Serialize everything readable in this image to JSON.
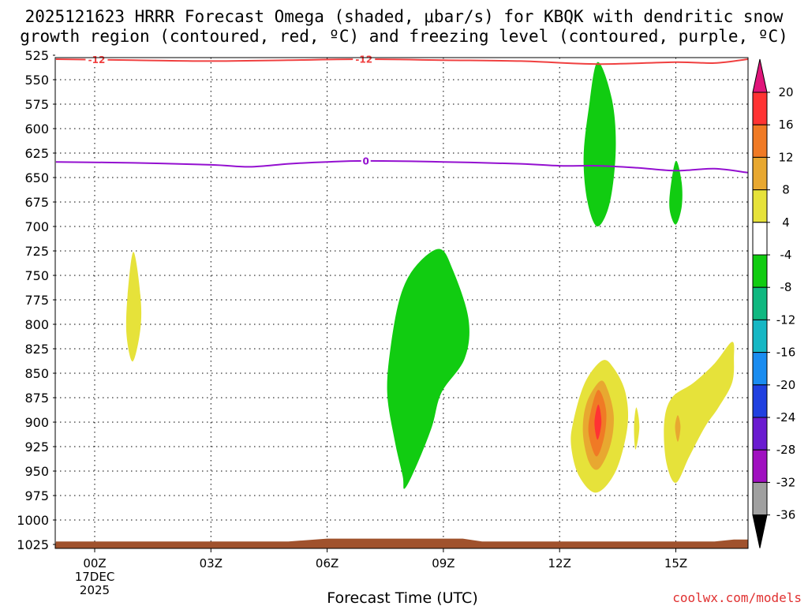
{
  "chart_data": {
    "type": "heatmap",
    "title_lines": [
      "2025121623 HRRR Forecast Omega (shaded, μbar/s) for KBQK with dendritic snow",
      "growth region (contoured, red, ºC) and freezing level (contoured, purple, ºC)"
    ],
    "xlabel": "Forecast Time (UTC)",
    "ylabel": "",
    "credit": "coolwx.com/models",
    "x_range_hours": [
      -1,
      17
    ],
    "y_range_hpa": [
      525,
      1025
    ],
    "grid": true,
    "x_ticks": [
      {
        "hour": 0,
        "label": "00Z",
        "sub": [
          "17DEC",
          "2025"
        ]
      },
      {
        "hour": 3,
        "label": "03Z"
      },
      {
        "hour": 6,
        "label": "06Z"
      },
      {
        "hour": 9,
        "label": "09Z"
      },
      {
        "hour": 12,
        "label": "12Z"
      },
      {
        "hour": 15,
        "label": "15Z"
      }
    ],
    "y_ticks": [
      525,
      550,
      575,
      600,
      625,
      650,
      675,
      700,
      725,
      750,
      775,
      800,
      825,
      850,
      875,
      900,
      925,
      950,
      975,
      1000,
      1025
    ],
    "colorbar": {
      "labels": [
        "20",
        "16",
        "12",
        "8",
        "4",
        "-4",
        "-8",
        "-12",
        "-16",
        "-20",
        "-24",
        "-28",
        "-32",
        "-36"
      ],
      "bands": [
        {
          "range": [
            16,
            20
          ],
          "color": "#ff3333"
        },
        {
          "range": [
            12,
            16
          ],
          "color": "#f07a25"
        },
        {
          "range": [
            8,
            12
          ],
          "color": "#e8a830"
        },
        {
          "range": [
            4,
            8
          ],
          "color": "#e6e23a"
        },
        {
          "range": [
            -4,
            4
          ],
          "color": "#ffffff"
        },
        {
          "range": [
            -8,
            -4
          ],
          "color": "#11cc11"
        },
        {
          "range": [
            -12,
            -8
          ],
          "color": "#10b880"
        },
        {
          "range": [
            -16,
            -12
          ],
          "color": "#16b7c4"
        },
        {
          "range": [
            -20,
            -16
          ],
          "color": "#1a8cf0"
        },
        {
          "range": [
            -24,
            -20
          ],
          "color": "#2040e0"
        },
        {
          "range": [
            -28,
            -24
          ],
          "color": "#6a1bd0"
        },
        {
          "range": [
            -32,
            -28
          ],
          "color": "#a010c0"
        },
        {
          "range": [
            -36,
            -32
          ],
          "color": "#a0a0a0"
        }
      ],
      "top_arrow_color": "#e0157a",
      "bottom_arrow_color": "#000000"
    },
    "contours": [
      {
        "name": "dendritic -12C",
        "color": "#f04040",
        "label": "-12",
        "label_hours": [
          0.05,
          6.95
        ],
        "points": [
          [
            -1,
            529
          ],
          [
            1,
            530
          ],
          [
            3,
            531
          ],
          [
            5,
            530
          ],
          [
            7,
            529
          ],
          [
            9,
            530
          ],
          [
            11,
            531
          ],
          [
            13,
            534
          ],
          [
            15,
            532
          ],
          [
            16,
            533
          ],
          [
            17,
            529
          ]
        ]
      },
      {
        "name": "freezing level 0C",
        "color": "#9410d0",
        "label": "0",
        "label_hours": [
          7.0
        ],
        "points": [
          [
            -1,
            634
          ],
          [
            1,
            635
          ],
          [
            3,
            637
          ],
          [
            4,
            639
          ],
          [
            5,
            636
          ],
          [
            6,
            634
          ],
          [
            7,
            633
          ],
          [
            9,
            634
          ],
          [
            11,
            636
          ],
          [
            12,
            638
          ],
          [
            13,
            638
          ],
          [
            14,
            640
          ],
          [
            15,
            643
          ],
          [
            16,
            641
          ],
          [
            17,
            645
          ]
        ]
      }
    ],
    "omega_features": [
      {
        "name": "green-cell-1",
        "level": "-8 to -4",
        "center_hour": 8.6,
        "pressure_range": [
          723,
          970
        ],
        "color": "#11cc11",
        "shape": [
          [
            8.9,
            723
          ],
          [
            8.3,
            740
          ],
          [
            7.9,
            770
          ],
          [
            7.65,
            820
          ],
          [
            7.55,
            870
          ],
          [
            7.75,
            920
          ],
          [
            7.95,
            955
          ],
          [
            8.0,
            968
          ],
          [
            8.3,
            945
          ],
          [
            8.7,
            905
          ],
          [
            8.95,
            870
          ],
          [
            9.55,
            835
          ],
          [
            9.65,
            795
          ],
          [
            9.25,
            745
          ]
        ]
      },
      {
        "name": "green-cell-2",
        "level": "-8 to -4",
        "center_hour": 13.0,
        "pressure_range": [
          532,
          700
        ],
        "color": "#11cc11",
        "shape": [
          [
            12.98,
            532
          ],
          [
            12.75,
            580
          ],
          [
            12.62,
            630
          ],
          [
            12.72,
            675
          ],
          [
            12.98,
            700
          ],
          [
            13.3,
            675
          ],
          [
            13.45,
            620
          ],
          [
            13.35,
            570
          ]
        ]
      },
      {
        "name": "green-cell-3",
        "level": "-8 to -4",
        "center_hour": 15.0,
        "pressure_range": [
          633,
          698
        ],
        "color": "#11cc11",
        "shape": [
          [
            15.0,
            633
          ],
          [
            14.85,
            665
          ],
          [
            14.85,
            685
          ],
          [
            15.0,
            698
          ],
          [
            15.15,
            680
          ],
          [
            15.15,
            655
          ]
        ]
      },
      {
        "name": "yellow-cell-1",
        "level": "4 to 8",
        "center_hour": 1.0,
        "pressure_range": [
          726,
          838
        ],
        "color": "#e6e23a",
        "shape": [
          [
            1.0,
            726
          ],
          [
            0.85,
            770
          ],
          [
            0.82,
            810
          ],
          [
            0.98,
            838
          ],
          [
            1.18,
            805
          ],
          [
            1.18,
            770
          ]
        ]
      },
      {
        "name": "yellow-cell-2",
        "level": "4 to 8 (core up to 20)",
        "center_hour": 13.0,
        "pressure_range": [
          837,
          972
        ],
        "color": "#e6e23a",
        "shape": [
          [
            13.1,
            837
          ],
          [
            12.65,
            860
          ],
          [
            12.35,
            900
          ],
          [
            12.3,
            925
          ],
          [
            12.5,
            955
          ],
          [
            12.95,
            972
          ],
          [
            13.45,
            950
          ],
          [
            13.75,
            905
          ],
          [
            13.7,
            870
          ],
          [
            13.4,
            845
          ]
        ]
      },
      {
        "name": "orange-core-2",
        "level": "8 to 12",
        "center_hour": 13.0,
        "pressure_range": [
          858,
          948
        ],
        "color": "#e8a830",
        "shape": [
          [
            13.05,
            858
          ],
          [
            12.7,
            880
          ],
          [
            12.6,
            910
          ],
          [
            12.75,
            940
          ],
          [
            13.0,
            948
          ],
          [
            13.3,
            925
          ],
          [
            13.4,
            895
          ],
          [
            13.25,
            868
          ]
        ]
      },
      {
        "name": "deep-orange-core-2",
        "level": "12 to 16",
        "center_hour": 13.0,
        "pressure_range": [
          867,
          935
        ],
        "color": "#f07a25",
        "shape": [
          [
            13.0,
            867
          ],
          [
            12.8,
            890
          ],
          [
            12.75,
            912
          ],
          [
            12.95,
            935
          ],
          [
            13.15,
            915
          ],
          [
            13.2,
            888
          ]
        ]
      },
      {
        "name": "red-core-2",
        "level": "16 to 20",
        "center_hour": 13.0,
        "pressure_range": [
          882,
          918
        ],
        "color": "#ff3333",
        "shape": [
          [
            13.0,
            882
          ],
          [
            12.9,
            900
          ],
          [
            12.98,
            918
          ],
          [
            13.08,
            900
          ]
        ]
      },
      {
        "name": "yellow-cell-3",
        "level": "4 to 8",
        "center_hour": 14.0,
        "pressure_range": [
          885,
          928
        ],
        "color": "#e6e23a",
        "shape": [
          [
            13.98,
            885
          ],
          [
            13.92,
            905
          ],
          [
            13.96,
            928
          ],
          [
            14.06,
            905
          ]
        ]
      },
      {
        "name": "yellow-cell-4",
        "level": "4 to 8",
        "center_hour": 15.4,
        "pressure_range": [
          818,
          962
        ],
        "color": "#e6e23a",
        "shape": [
          [
            16.45,
            818
          ],
          [
            16.0,
            840
          ],
          [
            15.45,
            860
          ],
          [
            14.9,
            875
          ],
          [
            14.7,
            900
          ],
          [
            14.75,
            940
          ],
          [
            15.0,
            962
          ],
          [
            15.35,
            935
          ],
          [
            15.75,
            905
          ],
          [
            16.1,
            885
          ],
          [
            16.45,
            860
          ],
          [
            16.5,
            835
          ]
        ]
      },
      {
        "name": "orange-core-4",
        "level": "8 to 12",
        "center_hour": 15.05,
        "pressure_range": [
          893,
          920
        ],
        "color": "#e8a830",
        "shape": [
          [
            15.05,
            893
          ],
          [
            14.98,
            905
          ],
          [
            15.05,
            920
          ],
          [
            15.12,
            905
          ]
        ]
      }
    ],
    "terrain": {
      "color": "#a0522d",
      "note": "ground near 1025 hPa along bottom of plot",
      "profile": [
        [
          -1,
          1022
        ],
        [
          5,
          1022
        ],
        [
          6,
          1019
        ],
        [
          9.5,
          1019
        ],
        [
          10,
          1022
        ],
        [
          16,
          1022
        ],
        [
          16.5,
          1020
        ],
        [
          17,
          1020
        ]
      ]
    }
  }
}
